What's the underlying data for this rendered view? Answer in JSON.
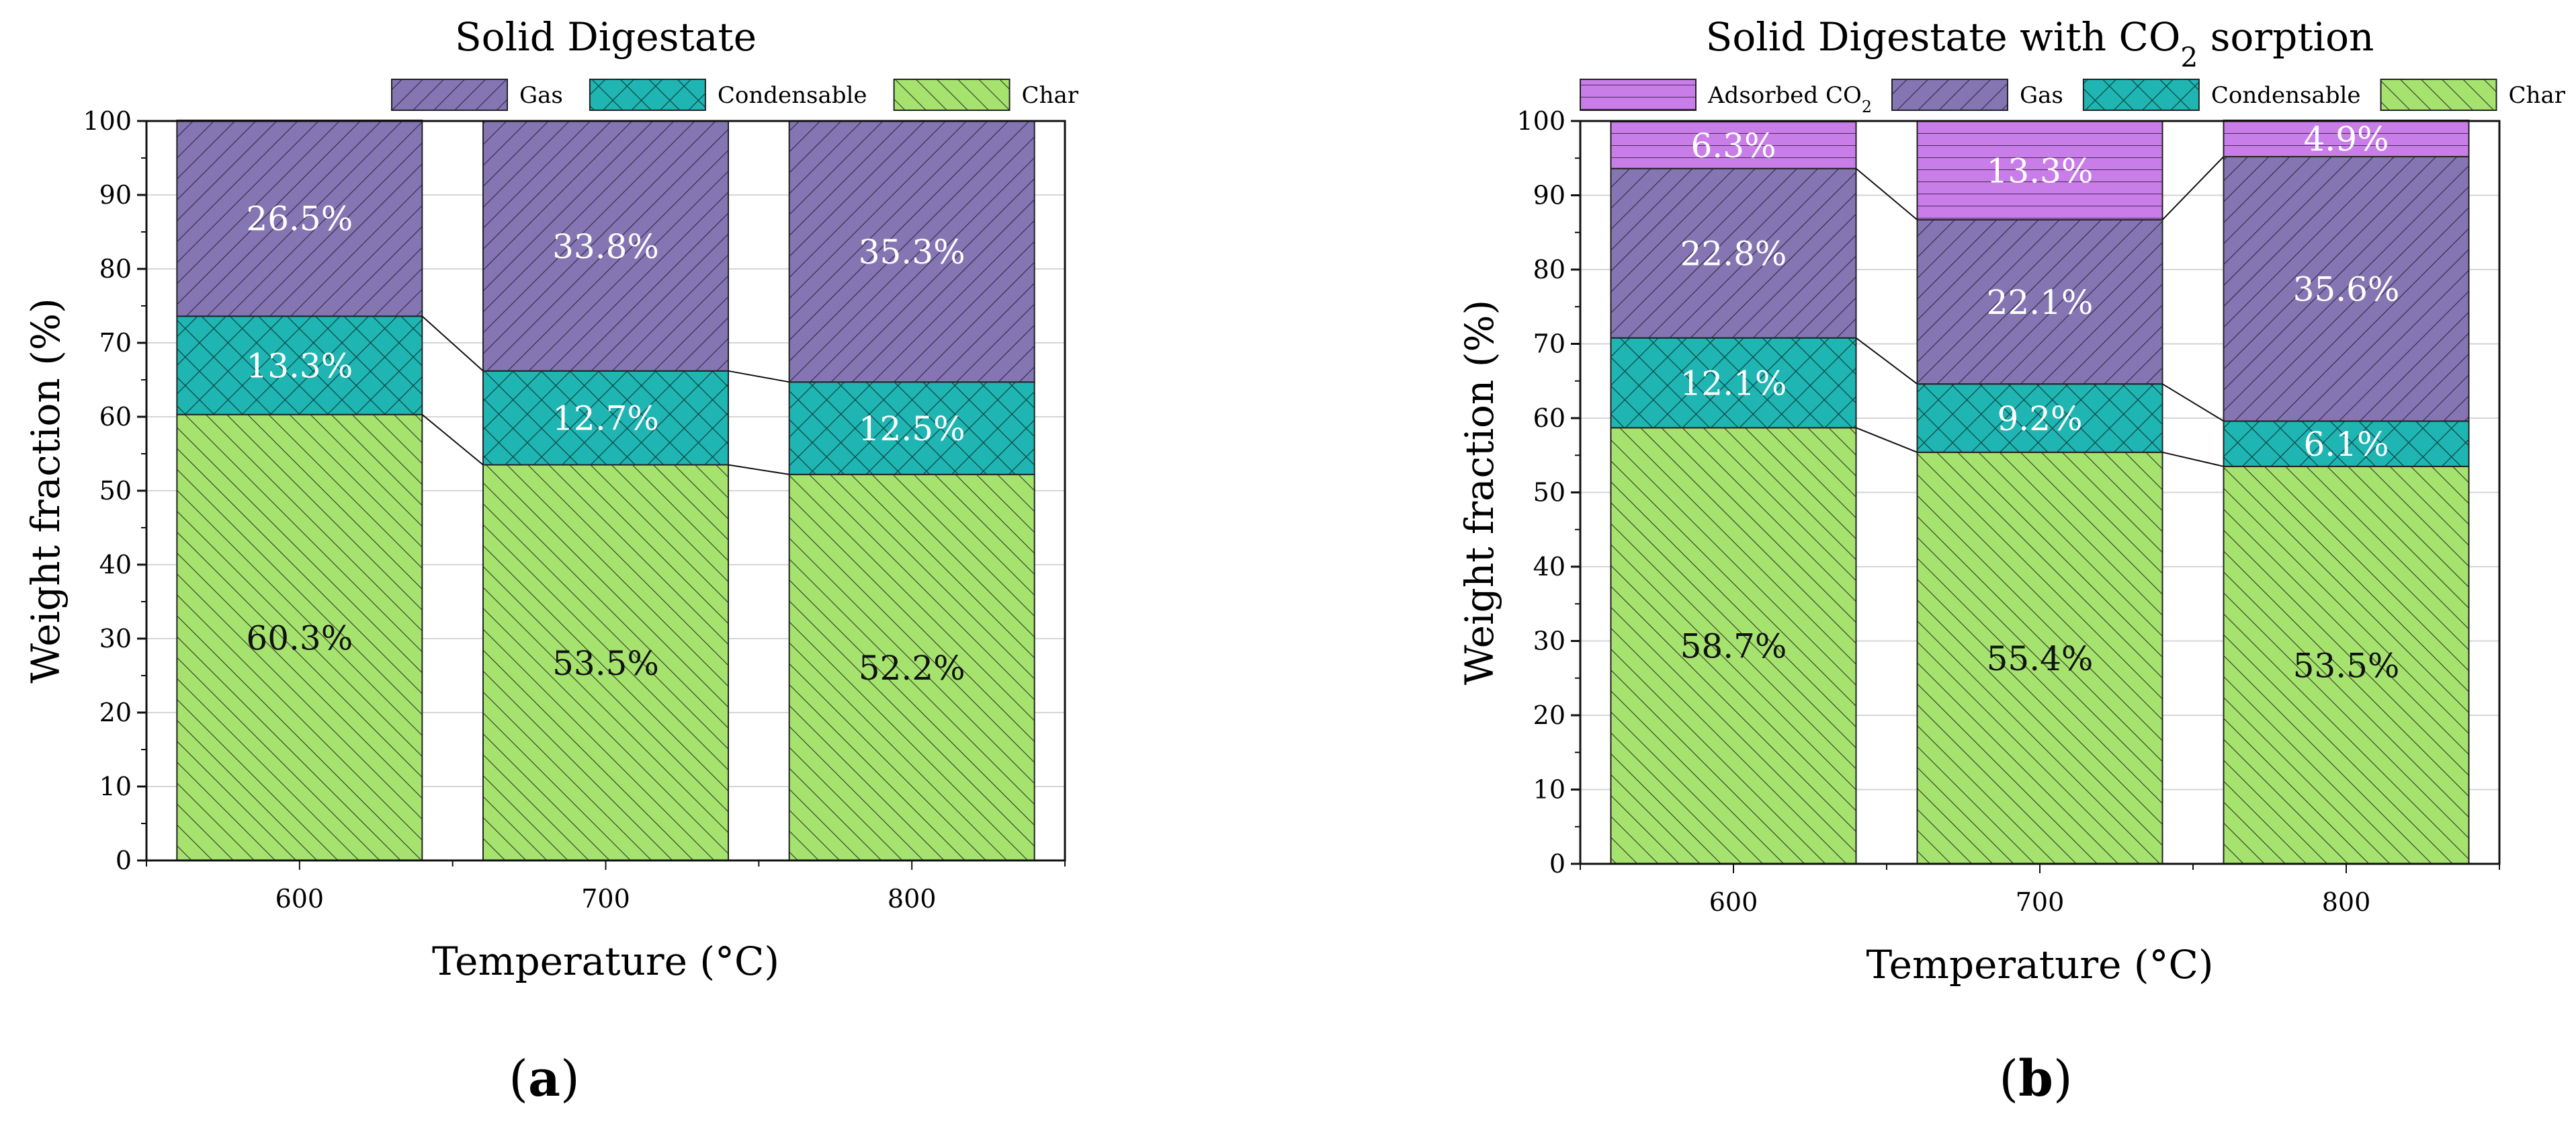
{
  "chart_data": [
    {
      "type": "bar",
      "stacked": true,
      "title": "Solid Digestate",
      "title_subscript": "",
      "title_suffix": "",
      "xlabel": "Temperature (°C)",
      "ylabel": "Weight fraction (%)",
      "ylim": [
        0,
        100
      ],
      "yticks": [
        0,
        10,
        20,
        30,
        40,
        50,
        60,
        70,
        80,
        90,
        100
      ],
      "categories": [
        "600",
        "700",
        "800"
      ],
      "legend": [
        {
          "name": "Gas",
          "pattern": "hatch-gas",
          "sub": ""
        },
        {
          "name": "Condensable",
          "pattern": "hatch-cond",
          "sub": ""
        },
        {
          "name": "Char",
          "pattern": "hatch-char",
          "sub": ""
        }
      ],
      "series": [
        {
          "name": "Char",
          "pattern": "hatch-char",
          "values": [
            60.3,
            53.5,
            52.2
          ],
          "labels": [
            "60.3%",
            "53.5%",
            "52.2%"
          ],
          "label_color": "#111111"
        },
        {
          "name": "Condensable",
          "pattern": "hatch-cond",
          "values": [
            13.3,
            12.7,
            12.5
          ],
          "labels": [
            "13.3%",
            "12.7%",
            "12.5%"
          ],
          "label_color": "#ffffff"
        },
        {
          "name": "Gas",
          "pattern": "hatch-gas",
          "values": [
            26.5,
            33.8,
            35.3
          ],
          "labels": [
            "26.5%",
            "33.8%",
            "35.3%"
          ],
          "label_color": "#ffffff"
        }
      ],
      "panel_label": "a"
    },
    {
      "type": "bar",
      "stacked": true,
      "title": "Solid Digestate with CO",
      "title_subscript": "2",
      "title_suffix": " sorption",
      "xlabel": "Temperature (°C)",
      "ylabel": "Weight fraction (%)",
      "ylim": [
        0,
        100
      ],
      "yticks": [
        0,
        10,
        20,
        30,
        40,
        50,
        60,
        70,
        80,
        90,
        100
      ],
      "categories": [
        "600",
        "700",
        "800"
      ],
      "legend": [
        {
          "name": "Adsorbed CO",
          "pattern": "hatch-ads",
          "sub": "2"
        },
        {
          "name": "Gas",
          "pattern": "hatch-gas",
          "sub": ""
        },
        {
          "name": "Condensable",
          "pattern": "hatch-cond",
          "sub": ""
        },
        {
          "name": "Char",
          "pattern": "hatch-char",
          "sub": ""
        }
      ],
      "series": [
        {
          "name": "Char",
          "pattern": "hatch-char",
          "values": [
            58.7,
            55.4,
            53.5
          ],
          "labels": [
            "58.7%",
            "55.4%",
            "53.5%"
          ],
          "label_color": "#111111"
        },
        {
          "name": "Condensable",
          "pattern": "hatch-cond",
          "values": [
            12.1,
            9.2,
            6.1
          ],
          "labels": [
            "12.1%",
            "9.2%",
            "6.1%"
          ],
          "label_color": "#ffffff"
        },
        {
          "name": "Gas",
          "pattern": "hatch-gas",
          "values": [
            22.8,
            22.1,
            35.6
          ],
          "labels": [
            "22.8%",
            "22.1%",
            "35.6%"
          ],
          "label_color": "#ffffff"
        },
        {
          "name": "Adsorbed CO2",
          "pattern": "hatch-ads",
          "values": [
            6.3,
            13.3,
            4.9
          ],
          "labels": [
            "6.3%",
            "13.3%",
            "4.9%"
          ],
          "label_color": "#ffffff"
        }
      ],
      "panel_label": "b"
    }
  ],
  "colors": {
    "char": "#a6e36e",
    "condensable": "#1fb5b2",
    "gas": "#8576b3",
    "adsorbed": "#c97de8"
  }
}
